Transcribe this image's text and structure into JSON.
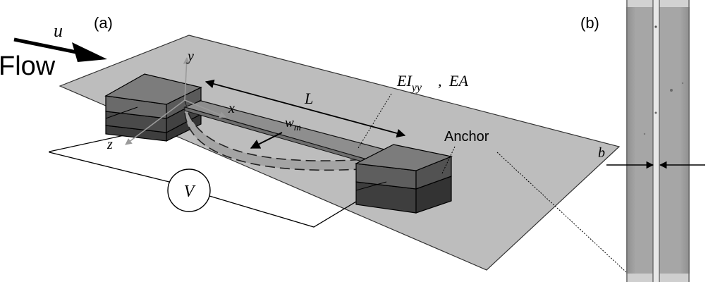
{
  "panel_a": {
    "panel_label": "(a)",
    "flow_label": "Flow",
    "velocity_symbol": "u",
    "axis_x": "x",
    "axis_y": "y",
    "axis_z": "z",
    "length_label": "L",
    "width_label": "w",
    "width_subscript": "m",
    "stiffness_label": "EI",
    "stiffness_subscript": "yy",
    "stiffness_separator": ",",
    "axial_label": "EA",
    "anchor_label": "Anchor",
    "voltage_label": "V"
  },
  "panel_b": {
    "panel_label": "(b)",
    "gap_label": "b"
  },
  "colors": {
    "substrate": "#bdbdbd",
    "anchor_top": "#7c7c7c",
    "anchor_front": "#5e5e5e",
    "anchor_bottom": "#3e3e3e",
    "beam": "#8e8e8e",
    "micrograph": "#a2a2a2",
    "micrograph_gap": "#e8e8e8"
  }
}
